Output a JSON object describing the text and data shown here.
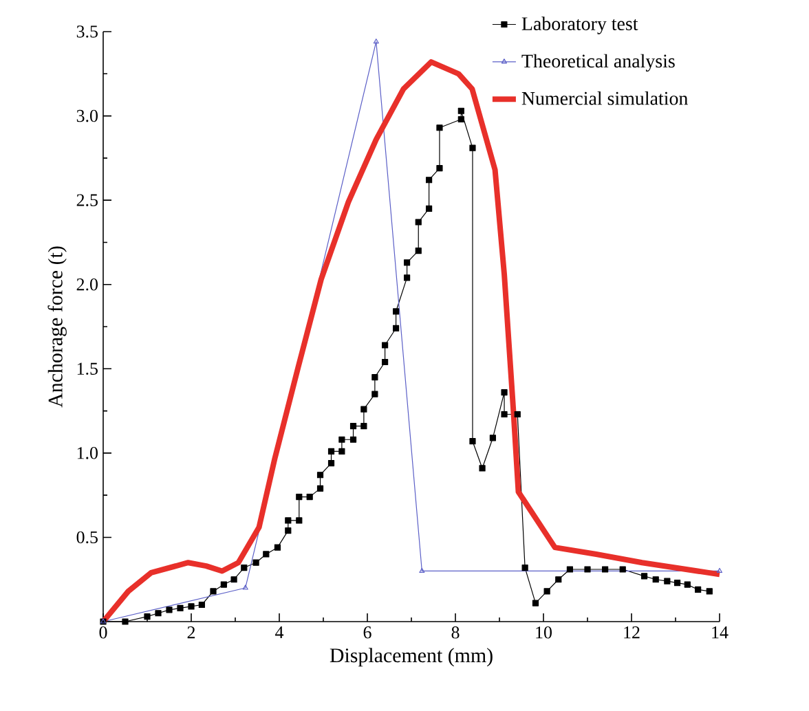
{
  "chart_data": {
    "type": "line",
    "xlabel": "Displacement (mm)",
    "ylabel": "Anchorage force (t)",
    "xlim": [
      0,
      14
    ],
    "ylim": [
      0,
      3.5
    ],
    "xticks": [
      0,
      2,
      4,
      6,
      8,
      10,
      12,
      14
    ],
    "yticks": [
      0.5,
      {
        "value": 1,
        "label": "1.0"
      },
      1.5,
      {
        "value": 2,
        "label": "2.0"
      },
      2.5,
      {
        "value": 3,
        "label": "3.0"
      },
      3.5
    ],
    "legend": "top right",
    "grid": false,
    "series": [
      {
        "name": "Laboratory test",
        "color": "#000000",
        "marker": "square",
        "x": [
          0,
          0.5,
          1.0,
          1.25,
          1.5,
          1.75,
          2.0,
          2.24,
          2.5,
          2.74,
          2.97,
          3.2,
          3.47,
          3.7,
          3.96,
          4.2,
          4.2,
          4.45,
          4.45,
          4.69,
          4.93,
          4.93,
          5.18,
          5.18,
          5.42,
          5.42,
          5.68,
          5.68,
          5.92,
          5.92,
          6.17,
          6.17,
          6.4,
          6.4,
          6.65,
          6.65,
          6.9,
          6.9,
          7.16,
          7.16,
          7.4,
          7.4,
          7.64,
          7.64,
          8.13,
          8.13,
          8.39,
          8.39,
          8.61,
          8.85,
          9.11,
          9.11,
          9.41,
          9.58,
          9.82,
          10.08,
          10.34,
          10.6,
          11.0,
          11.4,
          11.8,
          12.29,
          12.55,
          12.81,
          13.04,
          13.27,
          13.51,
          13.77
        ],
        "values": [
          0,
          0,
          0.03,
          0.05,
          0.07,
          0.08,
          0.09,
          0.1,
          0.18,
          0.22,
          0.25,
          0.32,
          0.35,
          0.4,
          0.44,
          0.54,
          0.6,
          0.6,
          0.74,
          0.74,
          0.79,
          0.87,
          0.94,
          1.01,
          1.01,
          1.08,
          1.08,
          1.16,
          1.16,
          1.26,
          1.35,
          1.45,
          1.54,
          1.64,
          1.74,
          1.84,
          2.04,
          2.13,
          2.2,
          2.37,
          2.45,
          2.62,
          2.69,
          2.93,
          2.98,
          3.03,
          2.81,
          1.07,
          0.91,
          1.09,
          1.36,
          1.23,
          1.23,
          0.32,
          0.11,
          0.18,
          0.25,
          0.31,
          0.31,
          0.31,
          0.31,
          0.27,
          0.25,
          0.24,
          0.23,
          0.22,
          0.19,
          0.18
        ]
      },
      {
        "name": "Theoretical analysis",
        "color": "#5b5fc7",
        "marker": "triangle",
        "x": [
          0,
          3.23,
          6.2,
          7.24,
          14
        ],
        "values": [
          0,
          0.2,
          3.44,
          0.3,
          0.3
        ]
      },
      {
        "name": "Numercial simulation",
        "color": "#e8302a",
        "marker": "none",
        "x": [
          0,
          0.57,
          1.09,
          1.93,
          2.34,
          2.7,
          3.07,
          3.54,
          3.9,
          4.43,
          4.95,
          5.57,
          6.2,
          6.82,
          7.45,
          8.07,
          8.38,
          8.9,
          9.11,
          9.32,
          9.43,
          10.26,
          11.2,
          12.24,
          14.0
        ],
        "values": [
          0,
          0.18,
          0.29,
          0.35,
          0.33,
          0.3,
          0.35,
          0.56,
          0.97,
          1.51,
          2.03,
          2.49,
          2.86,
          3.16,
          3.32,
          3.25,
          3.16,
          2.68,
          2.06,
          1.24,
          0.77,
          0.44,
          0.4,
          0.35,
          0.28
        ]
      }
    ]
  }
}
